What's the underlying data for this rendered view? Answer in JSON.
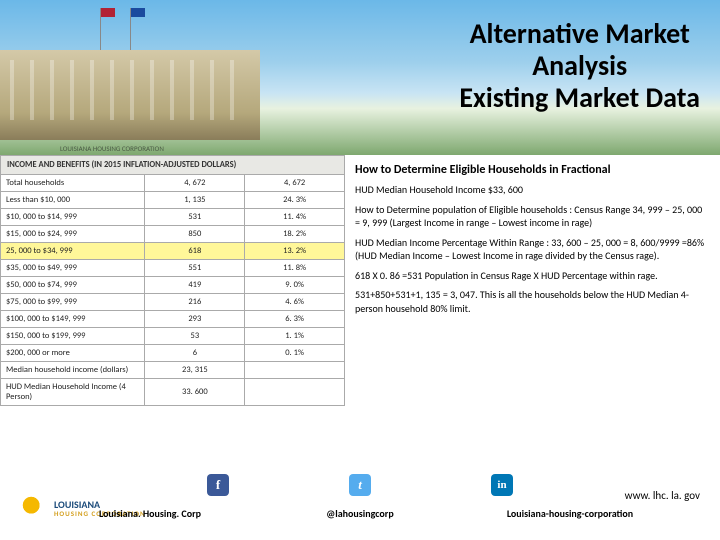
{
  "hero": {
    "title_l1": "Alternative Market",
    "title_l2": "Analysis",
    "title_l3": "Existing Market Data",
    "caption": "LOUISIANA HOUSING CORPORATION"
  },
  "table": {
    "caption": "INCOME AND BENEFITS (IN 2015 INFLATION-ADJUSTED DOLLARS)",
    "rows": [
      {
        "label": "Total households",
        "v1": "4, 672",
        "v2": "4, 672",
        "hl": false
      },
      {
        "label": "Less than $10, 000",
        "v1": "1, 135",
        "v2": "24. 3%",
        "hl": false
      },
      {
        "label": "$10, 000 to $14, 999",
        "v1": "531",
        "v2": "11. 4%",
        "hl": false
      },
      {
        "label": "$15, 000 to $24, 999",
        "v1": "850",
        "v2": "18. 2%",
        "hl": false
      },
      {
        "label": "25, 000 to $34, 999",
        "v1": "618",
        "v2": "13. 2%",
        "hl": true
      },
      {
        "label": "$35, 000 to $49, 999",
        "v1": "551",
        "v2": "11. 8%",
        "hl": false
      },
      {
        "label": "$50, 000 to $74, 999",
        "v1": "419",
        "v2": "9. 0%",
        "hl": false
      },
      {
        "label": "$75, 000 to $99, 999",
        "v1": "216",
        "v2": "4. 6%",
        "hl": false
      },
      {
        "label": "$100, 000 to $149, 999",
        "v1": "293",
        "v2": "6. 3%",
        "hl": false
      },
      {
        "label": "$150, 000 to $199, 999",
        "v1": "53",
        "v2": "1. 1%",
        "hl": false
      },
      {
        "label": "$200, 000 or more",
        "v1": "6",
        "v2": "0. 1%",
        "hl": false
      },
      {
        "label": "Median household income (dollars)",
        "v1": "23, 315",
        "v2": "",
        "hl": false
      },
      {
        "label": "HUD Median Household Income (4 Person)",
        "v1": "33. 600",
        "v2": "",
        "hl": false
      }
    ]
  },
  "right": {
    "heading": "How to Determine Eligible Households in Fractional",
    "p1": "HUD Median Household Income $33, 600",
    "p2": "How to Determine population of Eligible households : Census Range 34, 999 – 25, 000 = 9, 999 (Largest Income in range – Lowest income in rage)",
    "p3": "HUD Median Income Percentage Within Range : 33, 600 – 25, 000 = 8, 600/9999 =86% (HUD Median Income – Lowest Income in rage divided by the Census rage).",
    "p4": "618 X 0. 86 =531 Population in Census Rage X HUD Percentage within rage.",
    "p5": "531+850+531+1, 135 = 3, 047. This is all the households below the HUD Median 4-person household 80% limit."
  },
  "footer": {
    "logo_main": "LOUISIANA",
    "logo_sub": "HOUSING CORPORATION",
    "fb_label": "Louisiana. Housing. Corp",
    "tw_label": "@lahousingcorp",
    "li_label": "Louisiana-housing-corporation",
    "url": "www. lhc. la. gov"
  }
}
